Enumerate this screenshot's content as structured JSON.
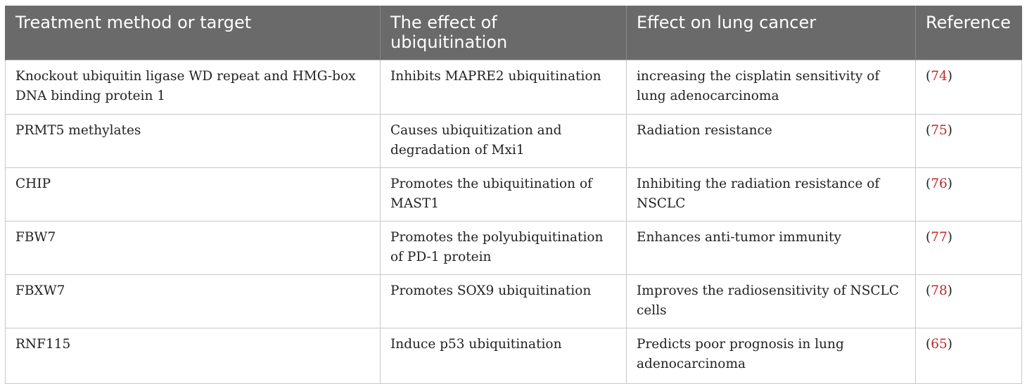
{
  "table": {
    "headers": [
      "Treatment method or target",
      "The effect of ubiquitination",
      "Effect on lung cancer",
      "Reference"
    ],
    "rows": [
      {
        "target": "Knockout ubiquitin ligase WD repeat and HMG-box DNA binding protein 1",
        "effect": "Inhibits MAPRE2 ubiquitination",
        "cancer_effect": "increasing the cisplatin sensitivity of lung adenocarcinoma",
        "ref_open": "(",
        "ref": "74",
        "ref_close": ")"
      },
      {
        "target": "PRMT5 methylates",
        "effect": "Causes ubiquitization and degradation of Mxi1",
        "cancer_effect": "Radiation resistance",
        "ref_open": "(",
        "ref": "75",
        "ref_close": ")"
      },
      {
        "target": "CHIP",
        "effect": "Promotes the ubiquitination of MAST1",
        "cancer_effect": "Inhibiting the radiation resistance of NSCLC",
        "ref_open": "(",
        "ref": "76",
        "ref_close": ")"
      },
      {
        "target": "FBW7",
        "effect": "Promotes the polyubiquitination of PD-1 protein",
        "cancer_effect": "Enhances anti-tumor immunity",
        "ref_open": "(",
        "ref": "77",
        "ref_close": ")"
      },
      {
        "target": "FBXW7",
        "effect": "Promotes SOX9 ubiquitination",
        "cancer_effect": "Improves the radiosensitivity of NSCLC cells",
        "ref_open": "(",
        "ref": "78",
        "ref_close": ")"
      },
      {
        "target": "RNF115",
        "effect": "Induce p53 ubiquitination",
        "cancer_effect": "Predicts poor prognosis in lung adenocarcinoma",
        "ref_open": "(",
        "ref": "65",
        "ref_close": ")"
      }
    ]
  },
  "colors": {
    "header_bg": "#6a6a6a",
    "header_text": "#ffffff",
    "reference_link": "#c0282d",
    "grid_line": "#c8c8c8"
  }
}
